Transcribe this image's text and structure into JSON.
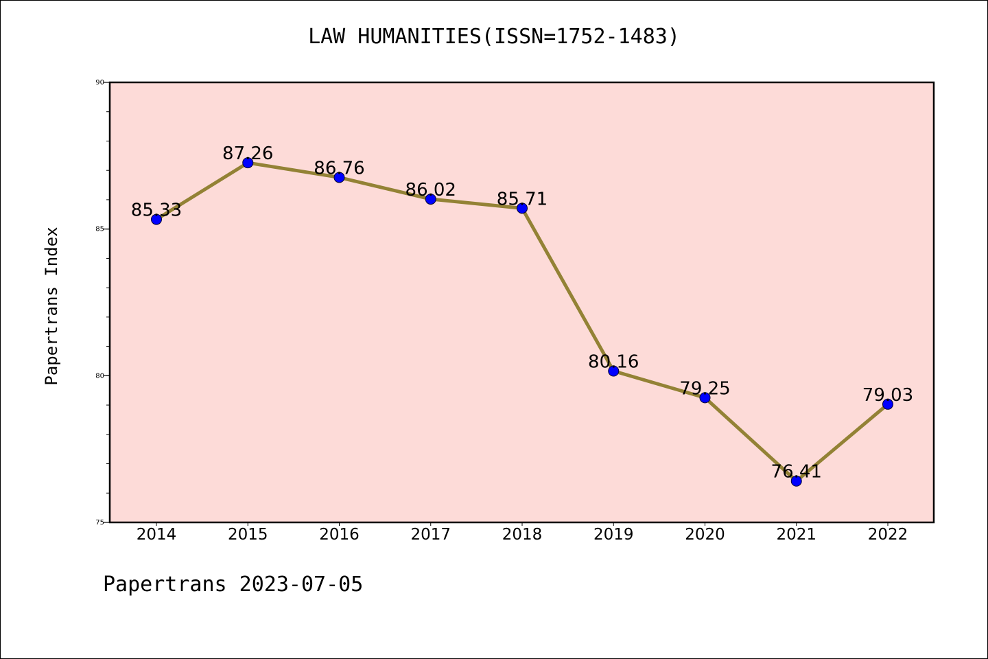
{
  "chart_data": {
    "type": "line",
    "title": "LAW HUMANITIES(ISSN=1752-1483)",
    "xlabel": "",
    "ylabel": "Papertrans Index",
    "categories": [
      "2014",
      "2015",
      "2016",
      "2017",
      "2018",
      "2019",
      "2020",
      "2021",
      "2022"
    ],
    "values": [
      85.33,
      87.26,
      86.76,
      86.02,
      85.71,
      80.16,
      79.25,
      76.41,
      79.03
    ],
    "data_labels": [
      "85.33",
      "87.26",
      "86.76",
      "86.02",
      "85.71",
      "80.16",
      "79.25",
      "76.41",
      "79.03"
    ],
    "ylim": [
      75,
      90
    ],
    "yticks": [
      75,
      80,
      85,
      90
    ],
    "ytick_labels": [
      "75",
      "80",
      "85",
      "90"
    ],
    "y_minor_step": 1,
    "grid": false,
    "legend": "none",
    "colors": {
      "plot_background": "#fddbd8",
      "line": "#938235",
      "marker": "#0000ff",
      "marker_edge": "#000033"
    }
  },
  "footer": "Papertrans 2023-07-05"
}
